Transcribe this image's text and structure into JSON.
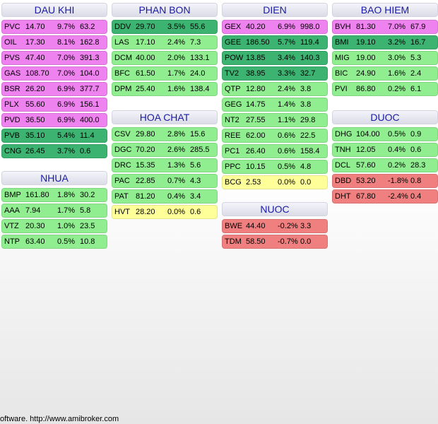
{
  "colors": {
    "magenta": "#ee82ee",
    "dgreen": "#3cb371",
    "lgreen": "#90ee90",
    "yellow": "#ffff99",
    "red": "#f08080",
    "header_text": "#1a1aa8"
  },
  "groups": [
    {
      "title": "DAU KHI",
      "rows": [
        {
          "sym": "PVC",
          "price": "14.70",
          "pct": "9.7%",
          "vol": "63.2",
          "color": "magenta"
        },
        {
          "sym": "OIL",
          "price": "17.30",
          "pct": "8.1%",
          "vol": "162.8",
          "color": "magenta"
        },
        {
          "sym": "PVS",
          "price": "47.40",
          "pct": "7.0%",
          "vol": "391.3",
          "color": "magenta"
        },
        {
          "sym": "GAS",
          "price": "108.70",
          "pct": "7.0%",
          "vol": "104.0",
          "color": "magenta"
        },
        {
          "sym": "BSR",
          "price": "26.20",
          "pct": "6.9%",
          "vol": "377.7",
          "color": "magenta"
        },
        {
          "sym": "PLX",
          "price": "55.60",
          "pct": "6.9%",
          "vol": "156.1",
          "color": "magenta"
        },
        {
          "sym": "PVD",
          "price": "36.50",
          "pct": "6.9%",
          "vol": "400.0",
          "color": "magenta"
        },
        {
          "sym": "PVB",
          "price": "35.10",
          "pct": "5.4%",
          "vol": "11.4",
          "color": "dgreen"
        },
        {
          "sym": "CNG",
          "price": "26.45",
          "pct": "3.7%",
          "vol": "0.6",
          "color": "dgreen"
        }
      ]
    },
    {
      "title": "NHUA",
      "rows": [
        {
          "sym": "BMP",
          "price": "161.80",
          "pct": "1.8%",
          "vol": "30.2",
          "color": "lgreen"
        },
        {
          "sym": "AAA",
          "price": "7.94",
          "pct": "1.7%",
          "vol": "5.8",
          "color": "lgreen"
        },
        {
          "sym": "VTZ",
          "price": "20.30",
          "pct": "1.0%",
          "vol": "23.5",
          "color": "lgreen"
        },
        {
          "sym": "NTP",
          "price": "63.40",
          "pct": "0.5%",
          "vol": "10.8",
          "color": "lgreen"
        }
      ]
    },
    {
      "title": "PHAN BON",
      "rows": [
        {
          "sym": "DDV",
          "price": "29.70",
          "pct": "3.5%",
          "vol": "55.6",
          "color": "dgreen"
        },
        {
          "sym": "LAS",
          "price": "17.10",
          "pct": "2.4%",
          "vol": "7.3",
          "color": "lgreen"
        },
        {
          "sym": "DCM",
          "price": "40.00",
          "pct": "2.0%",
          "vol": "133.1",
          "color": "lgreen"
        },
        {
          "sym": "BFC",
          "price": "61.50",
          "pct": "1.7%",
          "vol": "24.0",
          "color": "lgreen"
        },
        {
          "sym": "DPM",
          "price": "25.40",
          "pct": "1.6%",
          "vol": "138.4",
          "color": "lgreen"
        }
      ]
    },
    {
      "title": "HOA CHAT",
      "rows": [
        {
          "sym": "CSV",
          "price": "29.80",
          "pct": "2.8%",
          "vol": "15.6",
          "color": "lgreen"
        },
        {
          "sym": "DGC",
          "price": "70.20",
          "pct": "2.6%",
          "vol": "285.5",
          "color": "lgreen"
        },
        {
          "sym": "DRC",
          "price": "15.35",
          "pct": "1.3%",
          "vol": "5.6",
          "color": "lgreen"
        },
        {
          "sym": "PAC",
          "price": "22.85",
          "pct": "0.7%",
          "vol": "4.3",
          "color": "lgreen"
        },
        {
          "sym": "PAT",
          "price": "81.20",
          "pct": "0.4%",
          "vol": "3.4",
          "color": "lgreen"
        },
        {
          "sym": "HVT",
          "price": "28.20",
          "pct": "0.0%",
          "vol": "0.6",
          "color": "yellow"
        }
      ]
    },
    {
      "title": "DIEN",
      "rows": [
        {
          "sym": "GEX",
          "price": "40.20",
          "pct": "6.9%",
          "vol": "998.0",
          "color": "magenta"
        },
        {
          "sym": "GEE",
          "price": "186.50",
          "pct": "5.7%",
          "vol": "119.4",
          "color": "dgreen"
        },
        {
          "sym": "POW",
          "price": "13.85",
          "pct": "3.4%",
          "vol": "140.3",
          "color": "dgreen"
        },
        {
          "sym": "TV2",
          "price": "38.95",
          "pct": "3.3%",
          "vol": "32.7",
          "color": "dgreen"
        },
        {
          "sym": "QTP",
          "price": "12.80",
          "pct": "2.4%",
          "vol": "3.8",
          "color": "lgreen"
        },
        {
          "sym": "GEG",
          "price": "14.75",
          "pct": "1.4%",
          "vol": "3.8",
          "color": "lgreen"
        },
        {
          "sym": "NT2",
          "price": "27.55",
          "pct": "1.1%",
          "vol": "29.8",
          "color": "lgreen"
        },
        {
          "sym": "REE",
          "price": "62.00",
          "pct": "0.6%",
          "vol": "22.5",
          "color": "lgreen"
        },
        {
          "sym": "PC1",
          "price": "26.40",
          "pct": "0.6%",
          "vol": "158.4",
          "color": "lgreen"
        },
        {
          "sym": "PPC",
          "price": "10.15",
          "pct": "0.5%",
          "vol": "4.8",
          "color": "lgreen"
        },
        {
          "sym": "BCG",
          "price": "2.53",
          "pct": "0.0%",
          "vol": "0.0",
          "color": "yellow"
        }
      ]
    },
    {
      "title": "NUOC",
      "rows": [
        {
          "sym": "BWE",
          "price": "44.40",
          "pct": "-0.2%",
          "vol": "3.3",
          "color": "red"
        },
        {
          "sym": "TDM",
          "price": "58.50",
          "pct": "-0.7%",
          "vol": "0.0",
          "color": "red"
        }
      ]
    },
    {
      "title": "BAO HIEM",
      "rows": [
        {
          "sym": "BVH",
          "price": "81.30",
          "pct": "7.0%",
          "vol": "67.9",
          "color": "magenta"
        },
        {
          "sym": "BMI",
          "price": "19.10",
          "pct": "3.2%",
          "vol": "16.7",
          "color": "dgreen"
        },
        {
          "sym": "MIG",
          "price": "19.00",
          "pct": "3.0%",
          "vol": "5.3",
          "color": "lgreen"
        },
        {
          "sym": "BIC",
          "price": "24.90",
          "pct": "1.6%",
          "vol": "2.4",
          "color": "lgreen"
        },
        {
          "sym": "PVI",
          "price": "86.80",
          "pct": "0.2%",
          "vol": "6.1",
          "color": "lgreen"
        }
      ]
    },
    {
      "title": "DUOC",
      "rows": [
        {
          "sym": "DHG",
          "price": "104.00",
          "pct": "0.5%",
          "vol": "0.9",
          "color": "lgreen"
        },
        {
          "sym": "TNH",
          "price": "12.05",
          "pct": "0.4%",
          "vol": "0.6",
          "color": "lgreen"
        },
        {
          "sym": "DCL",
          "price": "57.60",
          "pct": "0.2%",
          "vol": "28.3",
          "color": "lgreen"
        },
        {
          "sym": "DBD",
          "price": "53.20",
          "pct": "-1.8%",
          "vol": "0.8",
          "color": "red"
        },
        {
          "sym": "DHT",
          "price": "67.80",
          "pct": "-2.4%",
          "vol": "0.4",
          "color": "red"
        }
      ]
    }
  ],
  "footer": "oftware. http://www.amibroker.com"
}
